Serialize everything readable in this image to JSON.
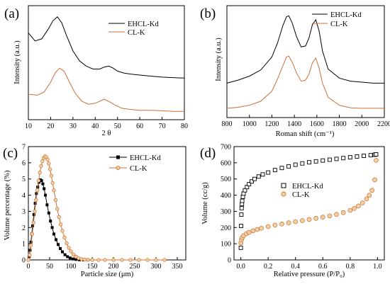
{
  "figure": {
    "colors": {
      "ehcl": "#000000",
      "cl": "#c8703a",
      "cl_fill": "#f2cf9e"
    },
    "panels": [
      {
        "label": "(a)",
        "xlabel": "2 θ",
        "ylabel": "Intensity (a.u.)",
        "legend": [
          "EHCL-Kd",
          "CL-K"
        ],
        "legend_position": "top-right",
        "xlim": [
          10,
          80
        ],
        "xticks": [
          "10",
          "20",
          "30",
          "40",
          "50",
          "60",
          "70",
          "80"
        ]
      },
      {
        "label": "(b)",
        "xlabel": "Roman shift (cm⁻¹)",
        "ylabel": "Intensity (a.u.)",
        "legend": [
          "EHCL-Kd",
          "CL-K"
        ],
        "legend_position": "top-right",
        "xlim": [
          800,
          2200
        ],
        "xticks": [
          "800",
          "1000",
          "1200",
          "1400",
          "1600",
          "1800",
          "2000",
          "2200"
        ]
      },
      {
        "label": "(c)",
        "xlabel": "Particle size (μm)",
        "ylabel": "Volume percentage (%)",
        "legend": [
          "EHCL-Kd",
          "CL-K"
        ],
        "legend_position": "top-right",
        "xlim": [
          0,
          370
        ],
        "ylim": [
          0,
          7
        ],
        "xticks": [
          "0",
          "50",
          "100",
          "150",
          "200",
          "250",
          "300",
          "350"
        ],
        "yticks": [
          "0",
          "1",
          "2",
          "3",
          "4",
          "5",
          "6",
          "7"
        ]
      },
      {
        "label": "(d)",
        "xlabel": "Relative pressure (P/P₀)",
        "ylabel": "Volume (cc/g)",
        "legend": [
          "EHCL-Kd",
          "CL-K"
        ],
        "legend_position": "center",
        "xlim": [
          -0.05,
          1.05
        ],
        "ylim": [
          0,
          700
        ],
        "xticks": [
          "0.0",
          "0.2",
          "0.4",
          "0.6",
          "0.8",
          "1.0"
        ],
        "yticks": [
          "0",
          "100",
          "200",
          "300",
          "400",
          "500",
          "600",
          "700"
        ]
      }
    ]
  },
  "chart_data": [
    {
      "type": "line",
      "xlabel": "2 θ",
      "ylabel": "Intensity (a.u.)",
      "xlim": [
        10,
        80
      ],
      "grid": false,
      "legend": "top-right",
      "series": [
        {
          "name": "EHCL-Kd",
          "x": [
            10,
            13,
            16,
            19,
            21,
            23,
            25,
            27,
            30,
            33,
            36,
            39,
            42,
            44,
            46,
            48,
            50,
            53,
            56,
            60,
            65,
            70,
            75,
            80
          ],
          "y": [
            0.8,
            0.72,
            0.74,
            0.84,
            0.92,
            0.96,
            0.9,
            0.78,
            0.62,
            0.52,
            0.47,
            0.44,
            0.44,
            0.46,
            0.47,
            0.45,
            0.42,
            0.4,
            0.39,
            0.38,
            0.37,
            0.36,
            0.355,
            0.35
          ]
        },
        {
          "name": "CL-K",
          "x": [
            10,
            14,
            17,
            20,
            22,
            24,
            26,
            28,
            31,
            34,
            37,
            40,
            43,
            44,
            46,
            49,
            52,
            55,
            60,
            65,
            70,
            75,
            80
          ],
          "y": [
            0.19,
            0.18,
            0.21,
            0.31,
            0.4,
            0.45,
            0.42,
            0.33,
            0.2,
            0.12,
            0.09,
            0.1,
            0.13,
            0.14,
            0.12,
            0.08,
            0.05,
            0.04,
            0.03,
            0.03,
            0.025,
            0.02,
            0.02
          ]
        }
      ]
    },
    {
      "type": "line",
      "xlabel": "Roman shift (cm⁻¹)",
      "ylabel": "Intensity (a.u.)",
      "xlim": [
        800,
        2200
      ],
      "grid": false,
      "legend": "top-right",
      "series": [
        {
          "name": "EHCL-Kd",
          "x": [
            800,
            900,
            1000,
            1100,
            1200,
            1250,
            1300,
            1330,
            1350,
            1380,
            1420,
            1460,
            1500,
            1530,
            1560,
            1590,
            1620,
            1650,
            1700,
            1800,
            1900,
            2000,
            2100,
            2200
          ],
          "y": [
            0.3,
            0.33,
            0.37,
            0.43,
            0.56,
            0.7,
            0.88,
            0.96,
            0.97,
            0.9,
            0.76,
            0.66,
            0.67,
            0.75,
            0.88,
            0.93,
            0.82,
            0.62,
            0.44,
            0.35,
            0.32,
            0.31,
            0.3,
            0.3
          ]
        },
        {
          "name": "CL-K",
          "x": [
            800,
            900,
            1000,
            1100,
            1200,
            1250,
            1300,
            1330,
            1350,
            1380,
            1420,
            1460,
            1500,
            1530,
            1560,
            1590,
            1620,
            1650,
            1700,
            1800,
            1900,
            2000,
            2100,
            2200
          ],
          "y": [
            0.05,
            0.06,
            0.08,
            0.12,
            0.22,
            0.34,
            0.48,
            0.56,
            0.57,
            0.51,
            0.4,
            0.32,
            0.33,
            0.39,
            0.5,
            0.55,
            0.45,
            0.3,
            0.16,
            0.08,
            0.055,
            0.05,
            0.05,
            0.05
          ]
        }
      ]
    },
    {
      "type": "line",
      "xlabel": "Particle size (μm)",
      "ylabel": "Volume percentage (%)",
      "xlim": [
        0,
        370
      ],
      "ylim": [
        0,
        7
      ],
      "grid": false,
      "legend": "top-right",
      "series": [
        {
          "name": "EHCL-Kd",
          "x": [
            0,
            2,
            4,
            6,
            8,
            10,
            13,
            16,
            19,
            22,
            25,
            28,
            31,
            34,
            37,
            40,
            44,
            48,
            52,
            56,
            60,
            65,
            70,
            75,
            80,
            86,
            92,
            98,
            105,
            112,
            120,
            130,
            140,
            150
          ],
          "y": [
            0,
            0.2,
            0.6,
            1.1,
            1.6,
            2.1,
            2.8,
            3.5,
            4.1,
            4.5,
            4.8,
            4.95,
            4.9,
            4.7,
            4.4,
            4.0,
            3.4,
            2.9,
            2.4,
            2.0,
            1.6,
            1.25,
            0.95,
            0.7,
            0.5,
            0.32,
            0.2,
            0.12,
            0.06,
            0.03,
            0.01,
            0,
            0,
            0
          ]
        },
        {
          "name": "CL-K",
          "x": [
            0,
            3,
            6,
            9,
            12,
            15,
            18,
            21,
            24,
            27,
            30,
            33,
            36,
            39,
            42,
            45,
            48,
            51,
            54,
            57,
            60,
            64,
            68,
            72,
            76,
            80,
            85,
            90,
            95,
            100,
            106,
            112,
            118,
            125,
            132,
            140,
            150,
            165,
            180,
            200,
            220,
            240,
            260,
            280,
            300,
            320
          ],
          "y": [
            0,
            0.3,
            0.9,
            1.6,
            2.3,
            3.0,
            3.7,
            4.3,
            4.9,
            5.4,
            5.8,
            6.1,
            6.3,
            6.4,
            6.35,
            6.2,
            5.95,
            5.6,
            5.2,
            4.75,
            4.3,
            3.7,
            3.15,
            2.65,
            2.2,
            1.8,
            1.38,
            1.03,
            0.75,
            0.53,
            0.34,
            0.2,
            0.11,
            0.05,
            0.02,
            0.01,
            0,
            0,
            0,
            0,
            0,
            0,
            0,
            0,
            0,
            0
          ]
        }
      ]
    },
    {
      "type": "scatter",
      "xlabel": "Relative pressure (P/P₀)",
      "ylabel": "Volume (cc/g)",
      "xlim": [
        -0.05,
        1.05
      ],
      "ylim": [
        0,
        700
      ],
      "grid": false,
      "legend": "center",
      "series": [
        {
          "name": "EHCL-Kd",
          "x": [
            0.0,
            0.002,
            0.004,
            0.006,
            0.008,
            0.01,
            0.015,
            0.02,
            0.03,
            0.045,
            0.06,
            0.08,
            0.1,
            0.13,
            0.16,
            0.2,
            0.25,
            0.3,
            0.35,
            0.4,
            0.45,
            0.5,
            0.55,
            0.6,
            0.65,
            0.7,
            0.75,
            0.8,
            0.85,
            0.9,
            0.95,
            0.98,
            0.99
          ],
          "y": [
            75,
            210,
            280,
            320,
            345,
            365,
            390,
            410,
            430,
            450,
            468,
            485,
            500,
            515,
            528,
            540,
            555,
            568,
            578,
            588,
            596,
            603,
            609,
            614,
            619,
            624,
            629,
            634,
            639,
            643,
            647,
            650,
            652
          ]
        },
        {
          "name": "CL-K",
          "x": [
            0.0,
            0.005,
            0.01,
            0.02,
            0.04,
            0.06,
            0.09,
            0.12,
            0.15,
            0.2,
            0.25,
            0.3,
            0.35,
            0.4,
            0.45,
            0.5,
            0.55,
            0.6,
            0.65,
            0.7,
            0.75,
            0.8,
            0.83,
            0.86,
            0.89,
            0.92,
            0.94,
            0.96,
            0.98,
            0.99
          ],
          "y": [
            105,
            125,
            138,
            150,
            162,
            170,
            180,
            188,
            196,
            206,
            215,
            222,
            229,
            236,
            243,
            250,
            257,
            264,
            272,
            281,
            292,
            306,
            318,
            333,
            352,
            377,
            400,
            430,
            495,
            615
          ]
        }
      ]
    }
  ]
}
